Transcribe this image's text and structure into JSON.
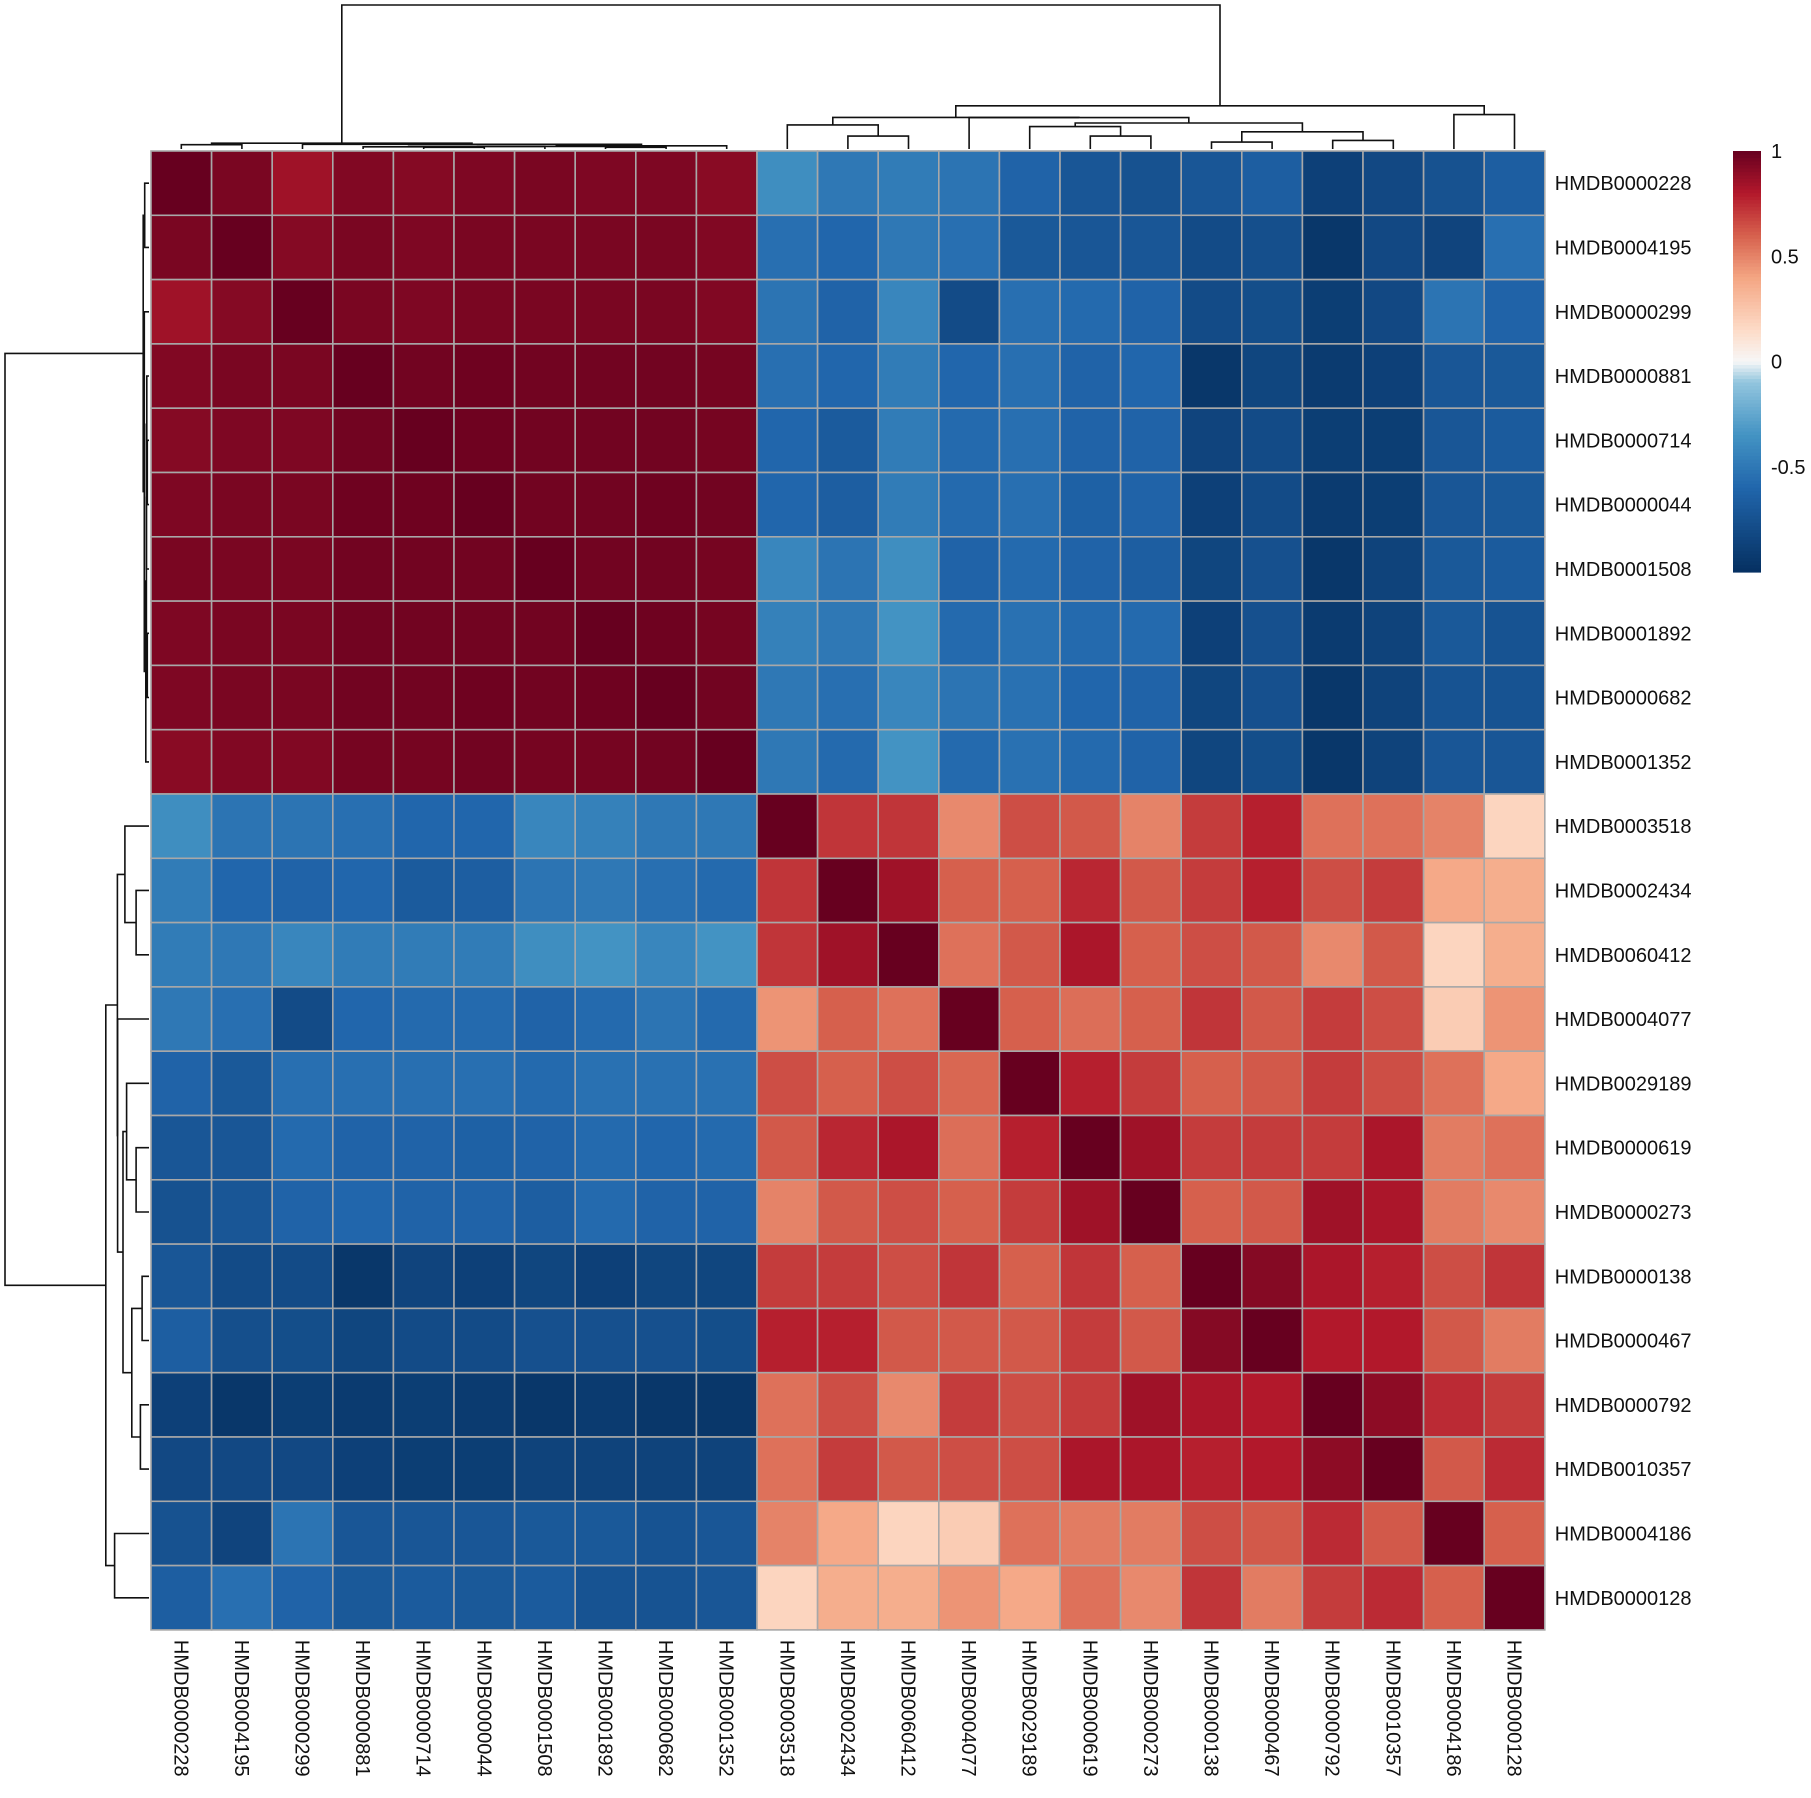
{
  "chart_data": {
    "type": "heatmap",
    "title": "",
    "clustered": true,
    "row_labels": [
      "HMDB0000228",
      "HMDB0004195",
      "HMDB0000299",
      "HMDB0000881",
      "HMDB0000714",
      "HMDB0000044",
      "HMDB0001508",
      "HMDB0001892",
      "HMDB0000682",
      "HMDB0001352",
      "HMDB0003518",
      "HMDB0002434",
      "HMDB0060412",
      "HMDB0004077",
      "HMDB0029189",
      "HMDB0000619",
      "HMDB0000273",
      "HMDB0000138",
      "HMDB0000467",
      "HMDB0000792",
      "HMDB0010357",
      "HMDB0004186",
      "HMDB0000128"
    ],
    "col_labels": [
      "HMDB0000228",
      "HMDB0004195",
      "HMDB0000299",
      "HMDB0000881",
      "HMDB0000714",
      "HMDB0000044",
      "HMDB0001508",
      "HMDB0001892",
      "HMDB0000682",
      "HMDB0001352",
      "HMDB0003518",
      "HMDB0002434",
      "HMDB0060412",
      "HMDB0004077",
      "HMDB0029189",
      "HMDB0000619",
      "HMDB0000273",
      "HMDB0000138",
      "HMDB0000467",
      "HMDB0000792",
      "HMDB0010357",
      "HMDB0004186",
      "HMDB0000128"
    ],
    "values": [
      [
        1.0,
        0.95,
        0.85,
        0.93,
        0.92,
        0.94,
        0.95,
        0.94,
        0.94,
        0.91,
        -0.38,
        -0.5,
        -0.48,
        -0.52,
        -0.62,
        -0.72,
        -0.75,
        -0.72,
        -0.66,
        -0.88,
        -0.82,
        -0.75,
        -0.66
      ],
      [
        0.95,
        1.0,
        0.92,
        0.95,
        0.94,
        0.95,
        0.95,
        0.95,
        0.95,
        0.93,
        -0.55,
        -0.6,
        -0.5,
        -0.55,
        -0.7,
        -0.72,
        -0.72,
        -0.8,
        -0.77,
        -0.95,
        -0.82,
        -0.85,
        -0.55
      ],
      [
        0.85,
        0.92,
        1.0,
        0.95,
        0.94,
        0.95,
        0.95,
        0.95,
        0.95,
        0.93,
        -0.52,
        -0.62,
        -0.42,
        -0.8,
        -0.55,
        -0.58,
        -0.62,
        -0.8,
        -0.78,
        -0.9,
        -0.82,
        -0.52,
        -0.62
      ],
      [
        0.93,
        0.95,
        0.95,
        1.0,
        0.97,
        0.98,
        0.97,
        0.97,
        0.97,
        0.96,
        -0.55,
        -0.6,
        -0.48,
        -0.6,
        -0.55,
        -0.62,
        -0.6,
        -0.95,
        -0.84,
        -0.92,
        -0.88,
        -0.72,
        -0.7
      ],
      [
        0.92,
        0.94,
        0.94,
        0.97,
        1.0,
        0.98,
        0.97,
        0.97,
        0.97,
        0.96,
        -0.6,
        -0.68,
        -0.48,
        -0.58,
        -0.55,
        -0.62,
        -0.62,
        -0.85,
        -0.8,
        -0.9,
        -0.9,
        -0.72,
        -0.68
      ],
      [
        0.94,
        0.95,
        0.95,
        0.98,
        0.98,
        1.0,
        0.97,
        0.97,
        0.98,
        0.97,
        -0.6,
        -0.66,
        -0.48,
        -0.58,
        -0.55,
        -0.64,
        -0.62,
        -0.88,
        -0.8,
        -0.92,
        -0.9,
        -0.72,
        -0.7
      ],
      [
        0.95,
        0.95,
        0.95,
        0.97,
        0.97,
        0.97,
        1.0,
        0.97,
        0.97,
        0.96,
        -0.42,
        -0.52,
        -0.38,
        -0.62,
        -0.58,
        -0.62,
        -0.66,
        -0.84,
        -0.76,
        -0.95,
        -0.86,
        -0.7,
        -0.68
      ],
      [
        0.94,
        0.95,
        0.95,
        0.97,
        0.97,
        0.97,
        0.97,
        1.0,
        0.98,
        0.96,
        -0.45,
        -0.5,
        -0.35,
        -0.58,
        -0.54,
        -0.58,
        -0.58,
        -0.88,
        -0.76,
        -0.92,
        -0.86,
        -0.7,
        -0.74
      ],
      [
        0.94,
        0.95,
        0.95,
        0.97,
        0.97,
        0.98,
        0.97,
        0.98,
        1.0,
        0.97,
        -0.5,
        -0.55,
        -0.42,
        -0.52,
        -0.54,
        -0.6,
        -0.62,
        -0.84,
        -0.76,
        -0.95,
        -0.86,
        -0.74,
        -0.74
      ],
      [
        0.91,
        0.93,
        0.93,
        0.96,
        0.96,
        0.97,
        0.96,
        0.96,
        0.97,
        1.0,
        -0.5,
        -0.58,
        -0.35,
        -0.58,
        -0.54,
        -0.58,
        -0.62,
        -0.84,
        -0.78,
        -0.95,
        -0.86,
        -0.72,
        -0.72
      ],
      [
        -0.38,
        -0.52,
        -0.52,
        -0.55,
        -0.6,
        -0.6,
        -0.42,
        -0.45,
        -0.5,
        -0.5,
        1.0,
        0.72,
        0.72,
        0.48,
        0.65,
        0.62,
        0.5,
        0.7,
        0.78,
        0.55,
        0.55,
        0.5,
        0.18
      ],
      [
        -0.48,
        -0.6,
        -0.62,
        -0.6,
        -0.68,
        -0.66,
        -0.52,
        -0.5,
        -0.55,
        -0.58,
        0.72,
        1.0,
        0.85,
        0.6,
        0.6,
        0.76,
        0.62,
        0.7,
        0.78,
        0.65,
        0.7,
        0.38,
        0.36
      ],
      [
        -0.48,
        -0.5,
        -0.42,
        -0.48,
        -0.48,
        -0.48,
        -0.38,
        -0.35,
        -0.42,
        -0.35,
        0.72,
        0.85,
        1.0,
        0.55,
        0.62,
        0.82,
        0.6,
        0.65,
        0.62,
        0.48,
        0.62,
        0.18,
        0.36
      ],
      [
        -0.5,
        -0.55,
        -0.8,
        -0.6,
        -0.58,
        -0.58,
        -0.62,
        -0.58,
        -0.52,
        -0.58,
        0.45,
        0.6,
        0.55,
        1.0,
        0.6,
        0.56,
        0.6,
        0.72,
        0.62,
        0.7,
        0.65,
        0.22,
        0.45
      ],
      [
        -0.62,
        -0.7,
        -0.55,
        -0.55,
        -0.55,
        -0.55,
        -0.58,
        -0.54,
        -0.54,
        -0.54,
        0.65,
        0.6,
        0.65,
        0.58,
        1.0,
        0.78,
        0.7,
        0.6,
        0.62,
        0.7,
        0.65,
        0.55,
        0.38
      ],
      [
        -0.72,
        -0.72,
        -0.58,
        -0.62,
        -0.62,
        -0.64,
        -0.62,
        -0.58,
        -0.6,
        -0.58,
        0.62,
        0.76,
        0.82,
        0.56,
        0.78,
        1.0,
        0.85,
        0.7,
        0.7,
        0.7,
        0.82,
        0.52,
        0.55
      ],
      [
        -0.75,
        -0.72,
        -0.62,
        -0.6,
        -0.62,
        -0.62,
        -0.66,
        -0.58,
        -0.62,
        -0.62,
        0.5,
        0.62,
        0.65,
        0.6,
        0.7,
        0.85,
        1.0,
        0.6,
        0.62,
        0.85,
        0.82,
        0.52,
        0.48
      ],
      [
        -0.72,
        -0.8,
        -0.8,
        -0.95,
        -0.85,
        -0.88,
        -0.84,
        -0.88,
        -0.84,
        -0.84,
        0.7,
        0.7,
        0.65,
        0.72,
        0.6,
        0.72,
        0.6,
        1.0,
        0.92,
        0.82,
        0.78,
        0.65,
        0.72
      ],
      [
        -0.66,
        -0.77,
        -0.78,
        -0.84,
        -0.8,
        -0.8,
        -0.76,
        -0.76,
        -0.76,
        -0.78,
        0.78,
        0.78,
        0.62,
        0.62,
        0.62,
        0.7,
        0.62,
        0.92,
        1.0,
        0.8,
        0.8,
        0.62,
        0.52
      ],
      [
        -0.88,
        -0.95,
        -0.9,
        -0.92,
        -0.9,
        -0.92,
        -0.95,
        -0.92,
        -0.95,
        -0.95,
        0.55,
        0.65,
        0.48,
        0.7,
        0.65,
        0.7,
        0.85,
        0.82,
        0.8,
        1.0,
        0.9,
        0.75,
        0.7
      ],
      [
        -0.82,
        -0.82,
        -0.82,
        -0.88,
        -0.9,
        -0.9,
        -0.86,
        -0.86,
        -0.86,
        -0.86,
        0.55,
        0.7,
        0.62,
        0.65,
        0.65,
        0.82,
        0.82,
        0.78,
        0.8,
        0.9,
        1.0,
        0.62,
        0.75
      ],
      [
        -0.75,
        -0.85,
        -0.52,
        -0.72,
        -0.72,
        -0.72,
        -0.7,
        -0.7,
        -0.74,
        -0.72,
        0.5,
        0.38,
        0.18,
        0.22,
        0.55,
        0.52,
        0.52,
        0.65,
        0.62,
        0.75,
        0.62,
        1.0,
        0.6
      ],
      [
        -0.66,
        -0.55,
        -0.62,
        -0.7,
        -0.68,
        -0.7,
        -0.68,
        -0.74,
        -0.74,
        -0.72,
        0.18,
        0.36,
        0.36,
        0.45,
        0.38,
        0.55,
        0.48,
        0.72,
        0.52,
        0.7,
        0.75,
        0.6,
        1.0
      ]
    ],
    "color_scale": {
      "min": -1,
      "max": 1,
      "stops": [
        {
          "v": -1.0,
          "c": "#053061"
        },
        {
          "v": -0.6,
          "c": "#2166ac"
        },
        {
          "v": -0.35,
          "c": "#4393c3"
        },
        {
          "v": -0.1,
          "c": "#92c5de"
        },
        {
          "v": 0.0,
          "c": "#f7f7f7"
        },
        {
          "v": 0.15,
          "c": "#fddbc7"
        },
        {
          "v": 0.4,
          "c": "#f4a582"
        },
        {
          "v": 0.6,
          "c": "#d6604d"
        },
        {
          "v": 0.8,
          "c": "#b2182b"
        },
        {
          "v": 1.0,
          "c": "#67001f"
        }
      ]
    },
    "legend": {
      "placement": "top-right",
      "ticks": [
        {
          "value": 1,
          "label": "1"
        },
        {
          "value": 0.5,
          "label": "0.5"
        },
        {
          "value": 0,
          "label": "0"
        },
        {
          "value": -0.5,
          "label": "-0.5"
        }
      ]
    }
  }
}
